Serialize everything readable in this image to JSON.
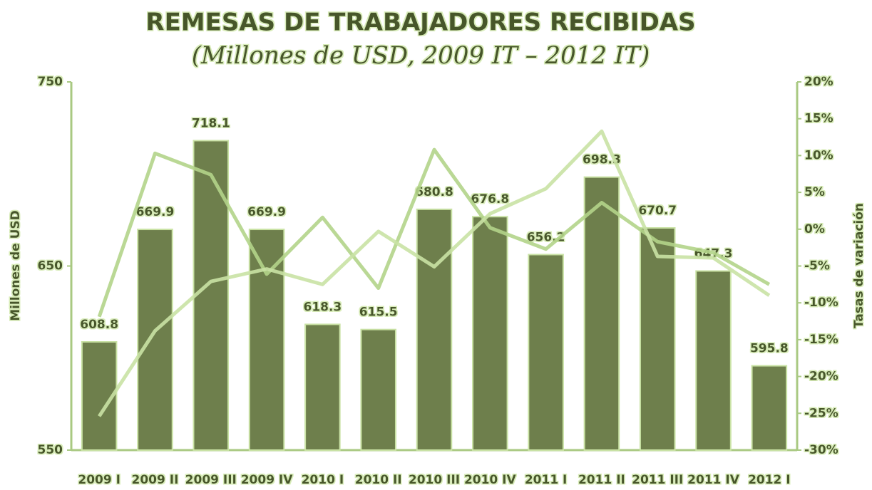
{
  "chart_data": {
    "type": "bar",
    "title": "REMESAS DE TRABAJADORES RECIBIDAS",
    "subtitle": "(Millones de USD, 2009 IT – 2012 IT)",
    "ylabel": "Millones de USD",
    "y2label": "Tasas de variación",
    "categories": [
      "2009 I",
      "2009 II",
      "2009 III",
      "2009 IV",
      "2010 I",
      "2010 II",
      "2010 III",
      "2010 IV",
      "2011 I",
      "2011 II",
      "2011 III",
      "2011 IV",
      "2012 I"
    ],
    "series": [
      {
        "type": "bar",
        "color": "#6e7f4c",
        "values": [
          608.8,
          669.9,
          718.1,
          669.9,
          618.3,
          615.5,
          680.8,
          676.8,
          656.2,
          698.3,
          670.7,
          647.3,
          595.8
        ]
      },
      {
        "type": "line",
        "axis": "y2",
        "color": "#b3d48a",
        "values": [
          -11.9,
          10.3,
          7.4,
          -6.1,
          1.6,
          -8.0,
          10.8,
          0.2,
          -2.7,
          3.6,
          -1.7,
          -3.2,
          -7.5
        ]
      },
      {
        "type": "line",
        "axis": "y2",
        "color": "#c9e2a4",
        "values": [
          -25.4,
          -13.8,
          -7.1,
          -5.4,
          -7.5,
          -0.3,
          -5.1,
          2.1,
          5.5,
          13.3,
          -3.7,
          -3.9,
          -9.0
        ]
      }
    ],
    "ylim": [
      550,
      750
    ],
    "yticks": [
      550,
      650,
      750
    ],
    "y2lim": [
      -30,
      20
    ],
    "y2ticks": [
      {
        "value": -30,
        "label": "-30%"
      },
      {
        "value": -25,
        "label": "-25%"
      },
      {
        "value": -20,
        "label": "-20%"
      },
      {
        "value": -15,
        "label": "-15%"
      },
      {
        "value": -10,
        "label": "-10%"
      },
      {
        "value": -5,
        "label": "-5%"
      },
      {
        "value": 0,
        "label": "0%"
      },
      {
        "value": 5,
        "label": "5%"
      },
      {
        "value": 10,
        "label": "10%"
      },
      {
        "value": 15,
        "label": "15%"
      },
      {
        "value": 20,
        "label": "20%"
      }
    ]
  }
}
